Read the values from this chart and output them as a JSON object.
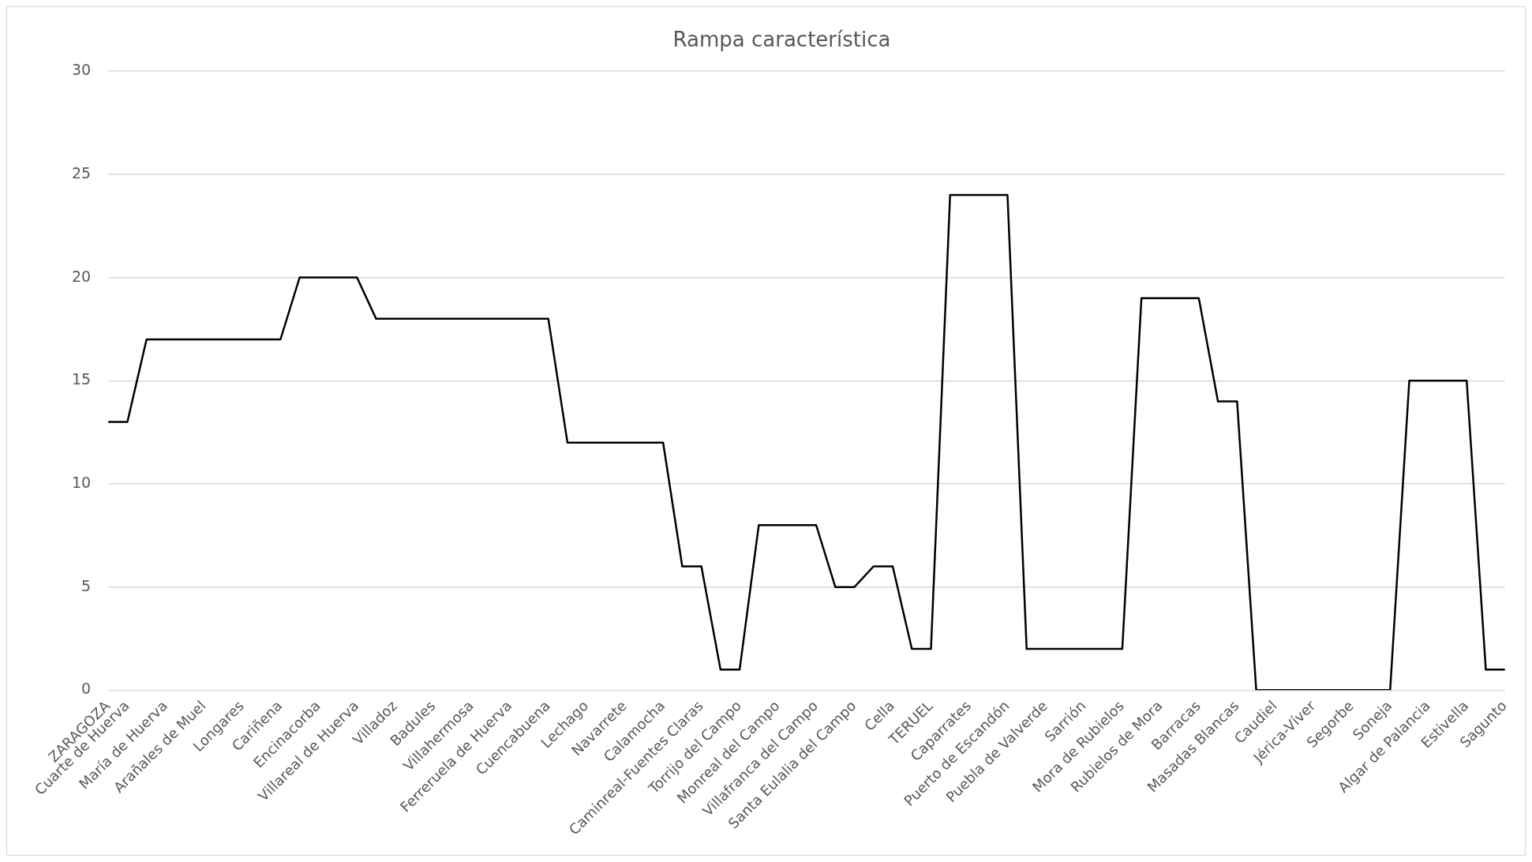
{
  "chart_data": {
    "type": "line",
    "title": "Rampa característica",
    "categories": [
      "ZARAGOZA",
      "Cuarte de Huerva",
      null,
      "María de Huerva",
      null,
      "Arañales de Muel",
      null,
      "Longares",
      null,
      "Cariñena",
      null,
      "Encinacorba",
      null,
      "Villareal de Huerva",
      null,
      "Villadoz",
      null,
      "Badules",
      null,
      "Villahermosa",
      null,
      "Ferreruela de Huerva",
      null,
      "Cuencabuena",
      null,
      "Lechago",
      null,
      "Navarrete",
      null,
      "Calamocha",
      null,
      "Caminreal-Fuentes Claras",
      null,
      "Torrijo del Campo",
      null,
      "Monreal del Campo",
      null,
      "Villafranca del Campo",
      null,
      "Santa Eulalia del Campo",
      null,
      "Cella",
      null,
      "TERUEL",
      null,
      "Caparrates",
      null,
      "Puerto de Escandón",
      null,
      "Puebla de Valverde",
      null,
      "Sarrión",
      null,
      "Mora de Rubielos",
      null,
      "Rubielos de Mora",
      null,
      "Barracas",
      null,
      "Masadas Blancas",
      null,
      "Caudiel",
      null,
      "Jérica-Víver",
      null,
      "Segorbe",
      null,
      "Soneja",
      null,
      "Algar de Palancia",
      null,
      "Estivella",
      null,
      "Sagunto"
    ],
    "series": [
      {
        "color": "#000000",
        "values": [
          13,
          13,
          17,
          17,
          17,
          17,
          17,
          17,
          17,
          17,
          20,
          20,
          20,
          20,
          18,
          18,
          18,
          18,
          18,
          18,
          18,
          18,
          18,
          18,
          12,
          12,
          12,
          12,
          12,
          12,
          6,
          6,
          1,
          1,
          8,
          8,
          8,
          8,
          5,
          5,
          6,
          6,
          2,
          2,
          24,
          24,
          24,
          24,
          2,
          2,
          2,
          2,
          2,
          2,
          19,
          19,
          19,
          19,
          14,
          14,
          0,
          0,
          0,
          0,
          0,
          0,
          0,
          0,
          15,
          15,
          15,
          15,
          1,
          1
        ]
      }
    ],
    "ylim": [
      0,
      30
    ],
    "yticks": [
      0,
      5,
      10,
      15,
      20,
      25,
      30
    ],
    "grid": "y",
    "legend": false,
    "marker": "none",
    "line_style": "solid"
  }
}
